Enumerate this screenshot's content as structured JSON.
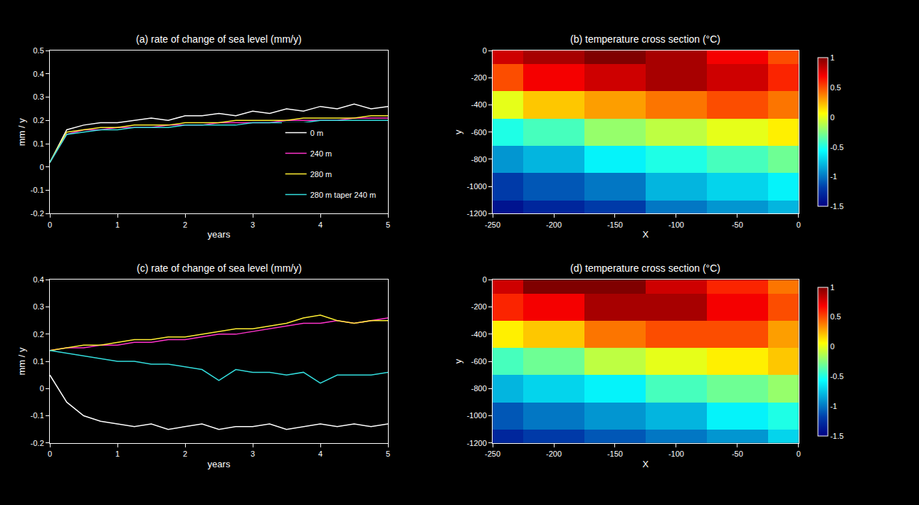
{
  "chart_data": [
    {
      "type": "line",
      "title": "(a) rate of change of sea level (mm/y)",
      "x_label": "years",
      "y_label": "mm / y",
      "x": [
        0,
        0.25,
        0.5,
        0.75,
        1,
        1.25,
        1.5,
        1.75,
        2,
        2.25,
        2.5,
        2.75,
        3,
        3.25,
        3.5,
        3.75,
        4,
        4.25,
        4.5,
        4.75,
        5
      ],
      "xlim": [
        0,
        5
      ],
      "xticks": [
        0,
        1,
        2,
        3,
        4,
        5
      ],
      "ylim": [
        -0.2,
        0.5
      ],
      "yticks": [
        -0.2,
        -0.1,
        0,
        0.1,
        0.2,
        0.3,
        0.4,
        0.5
      ],
      "grid": false,
      "legend": "lower right",
      "series": [
        {
          "name": "0 m",
          "color": "#ffffff",
          "values": [
            0.02,
            0.16,
            0.18,
            0.19,
            0.19,
            0.2,
            0.21,
            0.2,
            0.22,
            0.22,
            0.23,
            0.22,
            0.24,
            0.23,
            0.25,
            0.24,
            0.26,
            0.25,
            0.27,
            0.25,
            0.26
          ]
        },
        {
          "name": "240 m",
          "color": "#ff33cc",
          "values": [
            0.02,
            0.14,
            0.16,
            0.16,
            0.17,
            0.17,
            0.17,
            0.18,
            0.18,
            0.18,
            0.19,
            0.19,
            0.19,
            0.19,
            0.2,
            0.2,
            0.2,
            0.2,
            0.21,
            0.21,
            0.21
          ]
        },
        {
          "name": "280 m",
          "color": "#ffee33",
          "values": [
            0.02,
            0.15,
            0.16,
            0.17,
            0.17,
            0.18,
            0.18,
            0.18,
            0.19,
            0.19,
            0.19,
            0.2,
            0.2,
            0.2,
            0.2,
            0.21,
            0.21,
            0.21,
            0.21,
            0.22,
            0.22
          ]
        },
        {
          "name": "280 m taper 240 m",
          "color": "#33dddd",
          "values": [
            0.02,
            0.14,
            0.15,
            0.16,
            0.16,
            0.17,
            0.17,
            0.17,
            0.18,
            0.18,
            0.18,
            0.18,
            0.19,
            0.19,
            0.19,
            0.19,
            0.2,
            0.2,
            0.2,
            0.2,
            0.2
          ]
        }
      ]
    },
    {
      "type": "heatmap",
      "title": "(b) temperature cross section (°C)",
      "x_label": "X",
      "y_label": "y",
      "x": [
        -250,
        -200,
        -150,
        -100,
        -50,
        0
      ],
      "y": [
        -1200,
        -1000,
        -800,
        -600,
        -400,
        -200,
        0
      ],
      "xlim": [
        -250,
        0
      ],
      "xticks": [
        -250,
        -200,
        -150,
        -100,
        -50,
        0
      ],
      "ylim": [
        -1200,
        0
      ],
      "yticks": [
        -1200,
        -1000,
        -800,
        -600,
        -400,
        -200,
        0
      ],
      "z": [
        [
          -1.4,
          -1.3,
          -1.2,
          -1.0,
          -0.9,
          -0.8
        ],
        [
          -1.2,
          -1.1,
          -1.0,
          -0.8,
          -0.7,
          -0.6
        ],
        [
          -0.9,
          -0.8,
          -0.6,
          -0.5,
          -0.4,
          -0.3
        ],
        [
          -0.5,
          -0.4,
          -0.2,
          -0.1,
          0.0,
          0.1
        ],
        [
          0.0,
          0.2,
          0.3,
          0.4,
          0.5,
          0.4
        ],
        [
          0.5,
          0.7,
          0.8,
          0.9,
          0.8,
          0.6
        ],
        [
          0.8,
          0.9,
          1.0,
          0.9,
          0.7,
          0.5
        ]
      ],
      "zlim": [
        -1.5,
        1
      ],
      "zticks": [
        -1.5,
        -1,
        -0.5,
        0,
        0.5,
        1
      ]
    },
    {
      "type": "line",
      "title": "(c) rate of change of sea level (mm/y)",
      "x_label": "years",
      "y_label": "mm / y",
      "x": [
        0,
        0.25,
        0.5,
        0.75,
        1,
        1.25,
        1.5,
        1.75,
        2,
        2.25,
        2.5,
        2.75,
        3,
        3.25,
        3.5,
        3.75,
        4,
        4.25,
        4.5,
        4.75,
        5
      ],
      "xlim": [
        0,
        5
      ],
      "xticks": [
        0,
        1,
        2,
        3,
        4,
        5
      ],
      "ylim": [
        -0.2,
        0.4
      ],
      "yticks": [
        -0.2,
        -0.1,
        0,
        0.1,
        0.2,
        0.3,
        0.4
      ],
      "grid": false,
      "series": [
        {
          "name": "0 m",
          "color": "#ffffff",
          "values": [
            0.05,
            -0.05,
            -0.1,
            -0.12,
            -0.13,
            -0.14,
            -0.13,
            -0.15,
            -0.14,
            -0.13,
            -0.15,
            -0.14,
            -0.14,
            -0.13,
            -0.15,
            -0.14,
            -0.13,
            -0.14,
            -0.13,
            -0.14,
            -0.13
          ]
        },
        {
          "name": "240 m",
          "color": "#ff33cc",
          "values": [
            0.14,
            0.15,
            0.15,
            0.16,
            0.16,
            0.17,
            0.17,
            0.18,
            0.18,
            0.19,
            0.2,
            0.2,
            0.21,
            0.22,
            0.23,
            0.24,
            0.24,
            0.25,
            0.24,
            0.25,
            0.26
          ]
        },
        {
          "name": "280 m",
          "color": "#ffee33",
          "values": [
            0.14,
            0.15,
            0.16,
            0.16,
            0.17,
            0.18,
            0.18,
            0.19,
            0.19,
            0.2,
            0.21,
            0.22,
            0.22,
            0.23,
            0.24,
            0.26,
            0.27,
            0.25,
            0.24,
            0.25,
            0.25
          ]
        },
        {
          "name": "280 m taper 240 m",
          "color": "#33dddd",
          "values": [
            0.14,
            0.13,
            0.12,
            0.11,
            0.1,
            0.1,
            0.09,
            0.09,
            0.08,
            0.07,
            0.03,
            0.07,
            0.06,
            0.06,
            0.05,
            0.06,
            0.02,
            0.05,
            0.05,
            0.05,
            0.06
          ]
        }
      ]
    },
    {
      "type": "heatmap",
      "title": "(d) temperature cross section (°C)",
      "x_label": "X",
      "y_label": "y",
      "x": [
        -250,
        -200,
        -150,
        -100,
        -50,
        0
      ],
      "y": [
        -1200,
        -1000,
        -800,
        -600,
        -400,
        -200,
        0
      ],
      "xlim": [
        -250,
        0
      ],
      "xticks": [
        -250,
        -200,
        -150,
        -100,
        -50,
        0
      ],
      "ylim": [
        -1200,
        0
      ],
      "yticks": [
        -1200,
        -1000,
        -800,
        -600,
        -400,
        -200,
        0
      ],
      "z": [
        [
          -1.3,
          -1.2,
          -1.1,
          -1.0,
          -0.9,
          -0.7
        ],
        [
          -1.1,
          -1.0,
          -0.9,
          -0.8,
          -0.6,
          -0.5
        ],
        [
          -0.8,
          -0.7,
          -0.6,
          -0.4,
          -0.3,
          -0.2
        ],
        [
          -0.4,
          -0.3,
          -0.1,
          0.0,
          0.1,
          0.2
        ],
        [
          0.1,
          0.2,
          0.4,
          0.5,
          0.5,
          0.3
        ],
        [
          0.6,
          0.7,
          0.9,
          0.9,
          0.7,
          0.5
        ],
        [
          0.8,
          1.0,
          1.0,
          0.8,
          0.6,
          0.4
        ]
      ],
      "zlim": [
        -1.5,
        1
      ],
      "zticks": [
        -1.5,
        -1,
        -0.5,
        0,
        0.5,
        1
      ]
    }
  ]
}
